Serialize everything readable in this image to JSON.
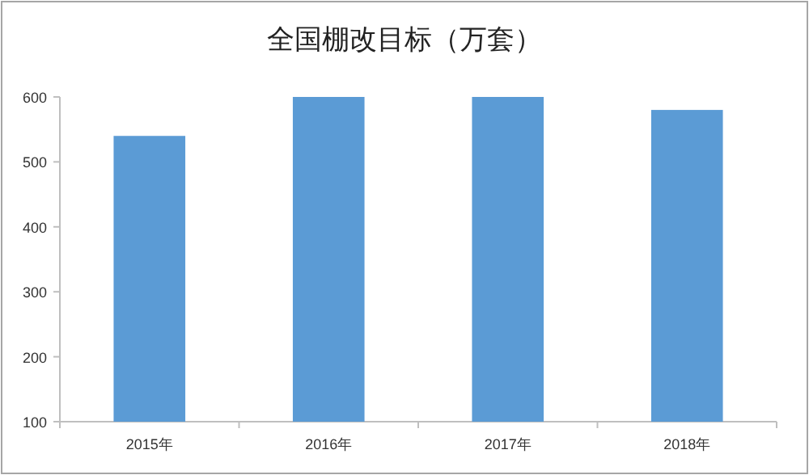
{
  "chart_data": {
    "type": "bar",
    "title": "全国棚改目标（万套）",
    "categories": [
      "2015年",
      "2016年",
      "2017年",
      "2018年"
    ],
    "values": [
      540,
      600,
      600,
      580
    ],
    "color": "#5b9bd5",
    "ylim": [
      100,
      600
    ],
    "yticks": [
      100,
      200,
      300,
      400,
      500,
      600
    ],
    "grid": false
  }
}
